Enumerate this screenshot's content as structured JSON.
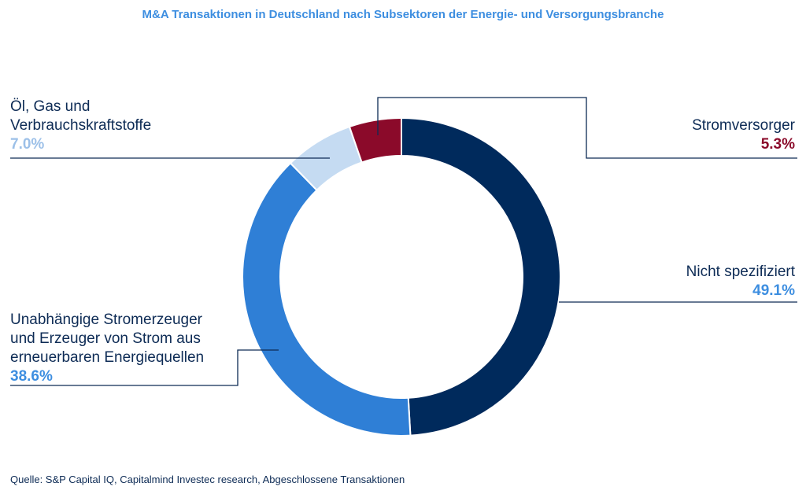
{
  "chart_data": {
    "type": "pie",
    "title": "M&A Transaktionen in Deutschland nach Subsektoren der Energie- und Versorgungsbranche",
    "slices": [
      {
        "name": "Nicht spezifiziert",
        "value": 49.1,
        "label": "49.1%",
        "color": "#002a5c"
      },
      {
        "name": "Unabhängige Stromerzeuger\nund Erzeuger von Strom aus\nerneuerbaren Energiequellen",
        "value": 38.6,
        "label": "38.6%",
        "color": "#2f7fd6"
      },
      {
        "name": "Öl, Gas und\nVerbrauchskraftstoffe",
        "value": 7.0,
        "label": "7.0%",
        "color": "#c5dbf2"
      },
      {
        "name": "Stromversorger",
        "value": 5.3,
        "label": "5.3%",
        "color": "#8b0a2a"
      }
    ],
    "legend": "none",
    "source": "Quelle: S&P Capital IQ, Capitalmind Investec research, Abgeschlossene Transaktionen"
  }
}
